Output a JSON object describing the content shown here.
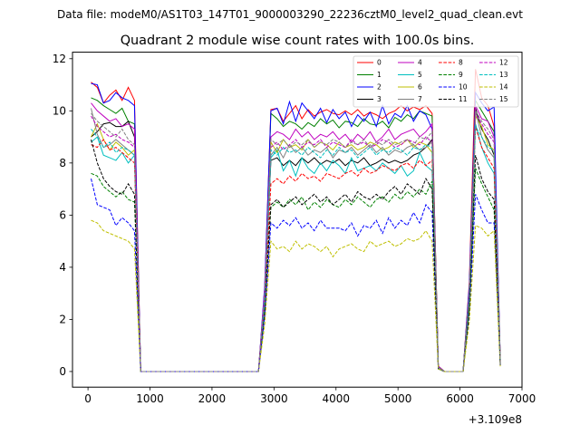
{
  "chart_data": {
    "type": "line",
    "suptitle": "Data file: modeM0/AS1T03_147T01_9000003290_22236cztM0_level2_quad_clean.evt",
    "title": "Quadrant 2 module wise count rates with 100.0s bins.",
    "xlabel": "",
    "ylabel": "",
    "x_offset_label": "+3.109e8",
    "xlim": [
      -250,
      7000
    ],
    "ylim": [
      -0.6,
      12.25
    ],
    "xticks": [
      0,
      1000,
      2000,
      3000,
      4000,
      5000,
      6000,
      7000
    ],
    "yticks": [
      0,
      2,
      4,
      6,
      8,
      10,
      12
    ],
    "x": [
      50,
      150,
      250,
      350,
      450,
      550,
      650,
      750,
      850,
      950,
      1050,
      1150,
      1250,
      1350,
      1450,
      1550,
      1650,
      1750,
      1850,
      1950,
      2050,
      2150,
      2250,
      2350,
      2450,
      2550,
      2650,
      2750,
      2850,
      2950,
      3050,
      3150,
      3250,
      3350,
      3450,
      3550,
      3650,
      3750,
      3850,
      3950,
      4050,
      4150,
      4250,
      4350,
      4450,
      4550,
      4650,
      4750,
      4850,
      4950,
      5050,
      5150,
      5250,
      5350,
      5450,
      5550,
      5650,
      5750,
      5850,
      5950,
      6050,
      6150,
      6250,
      6350,
      6450,
      6550,
      6650
    ],
    "series": [
      {
        "name": "0",
        "color": "#ff0000",
        "dash": "solid",
        "values": [
          11.1,
          10.9,
          10.3,
          10.6,
          10.8,
          10.4,
          10.9,
          10.4,
          0,
          0,
          0,
          0,
          0,
          0,
          0,
          0,
          0,
          0,
          0,
          0,
          0,
          0,
          0,
          0,
          0,
          0,
          0,
          0,
          3.2,
          10.05,
          10.1,
          9.6,
          9.9,
          10.2,
          9.7,
          10.05,
          9.8,
          9.95,
          10.05,
          9.9,
          9.85,
          10.0,
          9.85,
          10.05,
          9.8,
          9.95,
          9.85,
          9.7,
          9.9,
          10.0,
          10.2,
          10.0,
          10.15,
          10.05,
          10.2,
          9.9,
          0.2,
          0,
          0,
          0,
          0,
          3.4,
          11.6,
          10.5,
          10.2,
          9.4,
          0.4
        ]
      },
      {
        "name": "1",
        "color": "#008000",
        "dash": "solid",
        "values": [
          10.5,
          10.4,
          10.2,
          10.05,
          9.9,
          10.1,
          9.6,
          9.5,
          0,
          0,
          0,
          0,
          0,
          0,
          0,
          0,
          0,
          0,
          0,
          0,
          0,
          0,
          0,
          0,
          0,
          0,
          0,
          0,
          3.0,
          9.9,
          9.7,
          9.4,
          9.6,
          9.5,
          9.3,
          9.55,
          9.4,
          9.7,
          9.5,
          9.65,
          9.35,
          9.6,
          9.55,
          9.4,
          9.7,
          9.5,
          9.45,
          9.6,
          9.35,
          9.75,
          9.6,
          9.85,
          9.7,
          10.0,
          9.9,
          9.8,
          0.2,
          0,
          0,
          0,
          0,
          3.2,
          10.4,
          10.0,
          9.6,
          9.2,
          0.35
        ]
      },
      {
        "name": "2",
        "color": "#0000ff",
        "dash": "solid",
        "values": [
          11.05,
          11.0,
          10.3,
          10.4,
          10.7,
          10.5,
          10.4,
          10.2,
          0,
          0,
          0,
          0,
          0,
          0,
          0,
          0,
          0,
          0,
          0,
          0,
          0,
          0,
          0,
          0,
          0,
          0,
          0,
          0,
          3.3,
          10.0,
          10.1,
          9.5,
          10.35,
          9.6,
          10.3,
          10.0,
          9.7,
          10.1,
          9.55,
          10.05,
          9.7,
          9.95,
          9.4,
          9.85,
          9.6,
          9.95,
          9.4,
          10.2,
          9.5,
          9.9,
          9.75,
          10.2,
          9.6,
          10.0,
          9.85,
          9.3,
          0.15,
          0,
          0,
          0,
          0,
          3.3,
          10.7,
          10.3,
          10.0,
          10.15,
          0.35
        ]
      },
      {
        "name": "3",
        "color": "#000000",
        "dash": "solid",
        "values": [
          9.0,
          9.2,
          9.5,
          9.55,
          9.4,
          9.4,
          9.6,
          9.0,
          0,
          0,
          0,
          0,
          0,
          0,
          0,
          0,
          0,
          0,
          0,
          0,
          0,
          0,
          0,
          0,
          0,
          0,
          0,
          0,
          2.8,
          8.1,
          8.2,
          7.9,
          8.1,
          7.9,
          8.2,
          8.0,
          8.2,
          7.95,
          8.1,
          8.0,
          8.15,
          7.9,
          8.1,
          8.0,
          8.2,
          7.9,
          8.0,
          8.15,
          8.0,
          8.1,
          8.0,
          8.1,
          8.3,
          8.4,
          8.6,
          8.9,
          0.15,
          0,
          0,
          0,
          0,
          2.9,
          10.1,
          9.3,
          8.9,
          8.3,
          0.3
        ]
      },
      {
        "name": "4",
        "color": "#bf00bf",
        "dash": "solid",
        "values": [
          10.3,
          10.0,
          9.8,
          9.6,
          9.7,
          9.4,
          9.5,
          9.3,
          0,
          0,
          0,
          0,
          0,
          0,
          0,
          0,
          0,
          0,
          0,
          0,
          0,
          0,
          0,
          0,
          0,
          0,
          0,
          0,
          3.1,
          9.0,
          9.2,
          9.1,
          8.9,
          9.3,
          9.0,
          9.2,
          8.9,
          9.1,
          9.0,
          9.2,
          8.9,
          9.1,
          8.8,
          9.1,
          8.9,
          9.2,
          8.8,
          9.0,
          9.3,
          8.9,
          9.1,
          9.2,
          9.3,
          9.0,
          9.2,
          9.5,
          0.2,
          0,
          0,
          0,
          0,
          3.0,
          10.2,
          9.7,
          9.6,
          9.0,
          0.35
        ]
      },
      {
        "name": "5",
        "color": "#00bfbf",
        "dash": "solid",
        "values": [
          8.8,
          9.0,
          8.3,
          8.2,
          8.1,
          8.4,
          8.0,
          8.3,
          0,
          0,
          0,
          0,
          0,
          0,
          0,
          0,
          0,
          0,
          0,
          0,
          0,
          0,
          0,
          0,
          0,
          0,
          0,
          0,
          2.6,
          8.2,
          8.5,
          7.7,
          8.1,
          7.5,
          8.2,
          7.8,
          7.6,
          8.0,
          7.7,
          8.1,
          7.9,
          7.6,
          8.2,
          7.7,
          7.8,
          7.9,
          7.7,
          8.0,
          7.8,
          7.6,
          7.9,
          7.5,
          7.7,
          8.4,
          7.9,
          7.7,
          0.15,
          0,
          0,
          0,
          0,
          2.7,
          9.5,
          8.6,
          8.0,
          7.6,
          0.3
        ]
      },
      {
        "name": "6",
        "color": "#bfbf00",
        "dash": "solid",
        "values": [
          9.0,
          9.5,
          8.9,
          8.5,
          8.8,
          8.6,
          8.3,
          8.5,
          0,
          0,
          0,
          0,
          0,
          0,
          0,
          0,
          0,
          0,
          0,
          0,
          0,
          0,
          0,
          0,
          0,
          0,
          0,
          0,
          2.7,
          8.8,
          8.4,
          8.9,
          8.6,
          8.7,
          8.5,
          8.9,
          8.6,
          8.8,
          8.7,
          8.5,
          8.8,
          8.6,
          8.7,
          8.5,
          8.6,
          8.8,
          8.7,
          8.5,
          8.6,
          8.8,
          8.7,
          8.9,
          8.6,
          8.8,
          8.7,
          8.4,
          0.15,
          0,
          0,
          0,
          0,
          2.8,
          9.8,
          9.4,
          8.7,
          8.5,
          0.3
        ]
      },
      {
        "name": "7",
        "color": "#808080",
        "dash": "solid",
        "values": [
          10.1,
          9.1,
          8.6,
          8.7,
          8.9,
          8.7,
          8.5,
          8.3,
          0,
          0,
          0,
          0,
          0,
          0,
          0,
          0,
          0,
          0,
          0,
          0,
          0,
          0,
          0,
          0,
          0,
          0,
          0,
          0,
          2.7,
          8.3,
          8.6,
          8.2,
          8.7,
          8.4,
          8.6,
          8.3,
          8.5,
          8.4,
          8.6,
          8.2,
          8.5,
          8.4,
          8.6,
          8.3,
          8.5,
          8.7,
          8.4,
          8.6,
          8.3,
          8.5,
          8.4,
          8.6,
          8.7,
          8.5,
          8.6,
          8.8,
          0.15,
          0,
          0,
          0,
          0,
          2.8,
          10.0,
          9.0,
          8.5,
          8.2,
          0.3
        ]
      },
      {
        "name": "8",
        "color": "#ff0000",
        "dash": "dashed",
        "values": [
          8.7,
          8.6,
          8.9,
          8.5,
          8.6,
          8.4,
          8.2,
          8.0,
          0,
          0,
          0,
          0,
          0,
          0,
          0,
          0,
          0,
          0,
          0,
          0,
          0,
          0,
          0,
          0,
          0,
          0,
          0,
          0,
          2.5,
          7.2,
          7.4,
          7.2,
          7.5,
          7.3,
          7.6,
          7.4,
          7.5,
          7.3,
          7.6,
          7.5,
          7.4,
          7.6,
          7.7,
          7.5,
          7.8,
          7.6,
          7.7,
          7.9,
          7.8,
          7.7,
          7.9,
          8.0,
          7.8,
          8.1,
          7.9,
          8.1,
          0.15,
          0,
          0,
          0,
          0,
          2.6,
          9.4,
          8.6,
          8.2,
          7.8,
          0.3
        ]
      },
      {
        "name": "9",
        "color": "#008000",
        "dash": "dashed",
        "values": [
          7.6,
          7.5,
          7.1,
          6.9,
          6.7,
          6.9,
          6.6,
          6.5,
          0,
          0,
          0,
          0,
          0,
          0,
          0,
          0,
          0,
          0,
          0,
          0,
          0,
          0,
          0,
          0,
          0,
          0,
          0,
          0,
          2.3,
          6.3,
          6.5,
          6.3,
          6.6,
          6.4,
          6.7,
          6.2,
          6.5,
          6.3,
          6.6,
          6.4,
          6.3,
          6.6,
          6.4,
          6.7,
          6.5,
          6.3,
          6.6,
          6.7,
          6.5,
          6.8,
          6.6,
          6.9,
          6.7,
          7.0,
          6.8,
          7.3,
          0.1,
          0,
          0,
          0,
          0,
          2.4,
          7.8,
          7.2,
          6.7,
          6.2,
          0.25
        ]
      },
      {
        "name": "10",
        "color": "#0000ff",
        "dash": "dashed",
        "values": [
          7.4,
          6.4,
          6.3,
          6.2,
          5.6,
          5.9,
          5.7,
          5.4,
          0,
          0,
          0,
          0,
          0,
          0,
          0,
          0,
          0,
          0,
          0,
          0,
          0,
          0,
          0,
          0,
          0,
          0,
          0,
          0,
          2.1,
          5.7,
          5.5,
          5.8,
          5.6,
          5.9,
          5.5,
          5.7,
          5.4,
          5.8,
          5.5,
          5.5,
          5.5,
          5.4,
          5.7,
          5.2,
          5.6,
          5.5,
          5.8,
          5.3,
          5.9,
          5.5,
          5.8,
          5.6,
          6.1,
          5.7,
          6.4,
          6.1,
          0.1,
          0,
          0,
          0,
          0,
          2.2,
          6.8,
          6.2,
          5.7,
          5.7,
          0.25
        ]
      },
      {
        "name": "11",
        "color": "#000000",
        "dash": "dashed",
        "values": [
          8.9,
          8.0,
          7.4,
          7.1,
          6.9,
          6.8,
          7.2,
          6.8,
          0,
          0,
          0,
          0,
          0,
          0,
          0,
          0,
          0,
          0,
          0,
          0,
          0,
          0,
          0,
          0,
          0,
          0,
          0,
          0,
          2.4,
          6.4,
          6.6,
          6.3,
          6.5,
          6.7,
          6.4,
          6.6,
          6.8,
          6.5,
          6.7,
          6.4,
          6.6,
          6.8,
          6.5,
          6.9,
          6.7,
          6.6,
          6.8,
          6.6,
          6.9,
          7.1,
          6.8,
          7.2,
          7.0,
          6.8,
          7.4,
          7.0,
          0.1,
          0,
          0,
          0,
          0,
          2.4,
          8.3,
          7.4,
          6.9,
          6.6,
          0.25
        ]
      },
      {
        "name": "12",
        "color": "#bf00bf",
        "dash": "dashed",
        "values": [
          9.8,
          9.4,
          9.2,
          9.0,
          9.1,
          8.9,
          8.8,
          8.6,
          0,
          0,
          0,
          0,
          0,
          0,
          0,
          0,
          0,
          0,
          0,
          0,
          0,
          0,
          0,
          0,
          0,
          0,
          0,
          0,
          2.9,
          8.6,
          8.8,
          8.5,
          8.7,
          8.9,
          8.6,
          8.8,
          8.7,
          8.9,
          8.6,
          8.8,
          8.7,
          8.6,
          8.9,
          8.7,
          8.8,
          8.6,
          8.7,
          8.9,
          8.8,
          8.6,
          8.7,
          8.9,
          8.8,
          8.7,
          9.0,
          8.8,
          0.15,
          0,
          0,
          0,
          0,
          2.9,
          9.9,
          9.5,
          9.1,
          8.8,
          0.3
        ]
      },
      {
        "name": "13",
        "color": "#00bfbf",
        "dash": "dashed",
        "values": [
          9.3,
          9.0,
          8.6,
          8.8,
          8.4,
          8.6,
          8.5,
          8.3,
          0,
          0,
          0,
          0,
          0,
          0,
          0,
          0,
          0,
          0,
          0,
          0,
          0,
          0,
          0,
          0,
          0,
          0,
          0,
          0,
          2.7,
          8.5,
          8.3,
          8.6,
          8.4,
          8.5,
          8.3,
          8.6,
          8.4,
          8.2,
          8.5,
          8.3,
          8.6,
          8.4,
          8.5,
          8.2,
          8.4,
          8.6,
          8.3,
          8.5,
          8.4,
          8.6,
          8.5,
          8.3,
          8.6,
          8.5,
          8.7,
          8.6,
          0.15,
          0,
          0,
          0,
          0,
          2.8,
          9.4,
          9.0,
          8.6,
          8.5,
          0.3
        ]
      },
      {
        "name": "14",
        "color": "#bfbf00",
        "dash": "dashed",
        "values": [
          5.8,
          5.7,
          5.4,
          5.3,
          5.2,
          5.1,
          5.0,
          4.7,
          0,
          0,
          0,
          0,
          0,
          0,
          0,
          0,
          0,
          0,
          0,
          0,
          0,
          0,
          0,
          0,
          0,
          0,
          0,
          0,
          1.8,
          5.0,
          4.7,
          4.8,
          4.6,
          5.0,
          4.7,
          4.9,
          4.8,
          4.6,
          4.8,
          4.4,
          4.7,
          4.8,
          4.9,
          4.7,
          4.6,
          5.0,
          4.8,
          4.9,
          5.0,
          4.8,
          4.9,
          5.1,
          5.0,
          5.1,
          5.4,
          5.0,
          0.1,
          0,
          0,
          0,
          0,
          1.9,
          5.6,
          5.5,
          5.2,
          5.4,
          0.2
        ]
      },
      {
        "name": "15",
        "color": "#808080",
        "dash": "dashed",
        "values": [
          9.9,
          9.6,
          9.4,
          9.2,
          9.0,
          9.3,
          8.9,
          8.7,
          0,
          0,
          0,
          0,
          0,
          0,
          0,
          0,
          0,
          0,
          0,
          0,
          0,
          0,
          0,
          0,
          0,
          0,
          0,
          0,
          3.0,
          8.9,
          8.7,
          8.9,
          8.6,
          8.8,
          8.7,
          8.9,
          8.6,
          8.8,
          8.7,
          8.9,
          8.8,
          8.6,
          8.8,
          8.7,
          8.9,
          8.6,
          8.8,
          8.7,
          8.9,
          8.7,
          8.8,
          8.9,
          8.7,
          9.0,
          8.9,
          9.2,
          0.15,
          0,
          0,
          0,
          0,
          3.0,
          10.0,
          9.6,
          9.3,
          8.9,
          0.3
        ]
      }
    ],
    "legend": {
      "location": "top-right",
      "ncol": 4
    }
  }
}
